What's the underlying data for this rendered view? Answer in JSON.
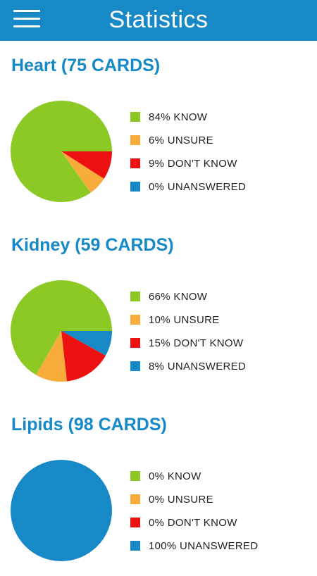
{
  "header": {
    "title": "Statistics"
  },
  "colors": {
    "know": "#8cc924",
    "unsure": "#f8ac3c",
    "dont_know": "#ee1111",
    "unanswered": "#1689c6",
    "header_bg": "#1689c6"
  },
  "chart_data": [
    {
      "type": "pie",
      "title": "Heart (75 CARDS)",
      "categories": [
        "KNOW",
        "UNSURE",
        "DON'T KNOW",
        "UNANSWERED"
      ],
      "values": [
        84,
        6,
        9,
        0
      ],
      "legend_labels": [
        "84% KNOW",
        "6% UNSURE",
        "9% DON'T KNOW",
        "0% UNANSWERED"
      ],
      "legend": "right"
    },
    {
      "type": "pie",
      "title": "Kidney (59 CARDS)",
      "categories": [
        "KNOW",
        "UNSURE",
        "DON'T KNOW",
        "UNANSWERED"
      ],
      "values": [
        66,
        10,
        15,
        8
      ],
      "legend_labels": [
        "66% KNOW",
        "10% UNSURE",
        "15% DON'T KNOW",
        "8% UNANSWERED"
      ],
      "legend": "right"
    },
    {
      "type": "pie",
      "title": "Lipids (98 CARDS)",
      "categories": [
        "KNOW",
        "UNSURE",
        "DON'T KNOW",
        "UNANSWERED"
      ],
      "values": [
        0,
        0,
        0,
        100
      ],
      "legend_labels": [
        "0% KNOW",
        "0% UNSURE",
        "0% DON'T KNOW",
        "100% UNANSWERED"
      ],
      "legend": "right"
    }
  ]
}
